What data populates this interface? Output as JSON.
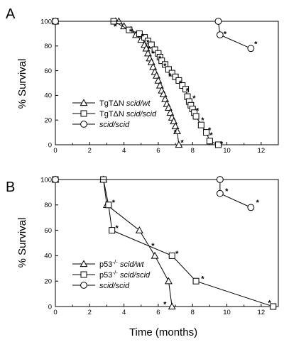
{
  "xlabel": "Time (months)",
  "chart_data": [
    {
      "type": "line",
      "panel": "A",
      "ylabel": "% Survival",
      "xlim": [
        0,
        13
      ],
      "ylim": [
        0,
        100
      ],
      "xticks": [
        0,
        2,
        4,
        6,
        8,
        10,
        12
      ],
      "yticks": [
        0,
        20,
        40,
        60,
        80,
        100
      ],
      "xlabel": "",
      "legend_position": "bottom-left",
      "series": [
        {
          "name": "TgTΔN ",
          "name_italic": "scid/wt",
          "marker": "triangle",
          "x": [
            0,
            3.5,
            3.7,
            4.0,
            4.4,
            4.7,
            5.0,
            5.2,
            5.3,
            5.4,
            5.5,
            5.6,
            5.7,
            5.8,
            5.9,
            6.0,
            6.1,
            6.2,
            6.3,
            6.4,
            6.5,
            6.6,
            6.7,
            6.8,
            6.9,
            7.0,
            7.1,
            7.2
          ],
          "y": [
            100,
            100,
            100,
            96,
            93,
            89,
            85,
            81,
            78,
            74,
            70,
            67,
            63,
            59,
            56,
            52,
            48,
            44,
            41,
            37,
            33,
            30,
            26,
            22,
            19,
            15,
            11,
            0
          ]
        },
        {
          "name": "TgTΔN ",
          "name_italic": "scid/scid",
          "marker": "square",
          "x": [
            0,
            3.4,
            4.3,
            4.9,
            5.2,
            5.4,
            5.6,
            5.8,
            6.0,
            6.1,
            6.2,
            6.4,
            6.6,
            6.8,
            7.0,
            7.2,
            7.4,
            7.6,
            7.7,
            7.8,
            7.9,
            8.0,
            8.1,
            8.2,
            8.5,
            8.8,
            9.0,
            9.5
          ],
          "y": [
            100,
            100,
            93,
            90,
            87,
            84,
            81,
            77,
            74,
            71,
            68,
            65,
            61,
            58,
            55,
            52,
            48,
            45,
            39,
            35,
            32,
            29,
            26,
            23,
            16,
            10,
            3,
            0
          ]
        },
        {
          "name": "",
          "name_italic": "scid/scid",
          "marker": "circle",
          "x": [
            0,
            9.5,
            9.6,
            11.4
          ],
          "y": [
            100,
            100,
            89,
            78
          ]
        }
      ],
      "stars": [
        [
          3.4,
          96
        ],
        [
          4.3,
          92
        ],
        [
          5.0,
          88
        ],
        [
          5.3,
          83
        ],
        [
          5.4,
          78
        ],
        [
          5.6,
          74
        ],
        [
          6.0,
          70
        ],
        [
          6.3,
          64
        ],
        [
          6.6,
          56
        ],
        [
          7.2,
          50
        ],
        [
          7.6,
          44
        ],
        [
          8.0,
          38
        ],
        [
          8.2,
          28
        ],
        [
          8.5,
          20
        ],
        [
          8.9,
          12
        ],
        [
          9.0,
          8
        ],
        [
          9.6,
          1
        ],
        [
          7.3,
          2
        ],
        [
          6.9,
          10
        ],
        [
          9.8,
          90
        ],
        [
          11.6,
          82
        ]
      ]
    },
    {
      "type": "line",
      "panel": "B",
      "ylabel": "% Survival",
      "xlim": [
        0,
        13
      ],
      "ylim": [
        0,
        100
      ],
      "xticks": [
        0,
        2,
        4,
        6,
        8,
        10,
        12
      ],
      "yticks": [
        0,
        20,
        40,
        60,
        80,
        100
      ],
      "xlabel": "Time (months)",
      "legend_position": "bottom-left",
      "series": [
        {
          "name": "p53",
          "name_sup": "-/-",
          "name_italic": "scid/wt",
          "marker": "triangle",
          "x": [
            0,
            2.8,
            3.0,
            4.9,
            5.8,
            6.6,
            6.8
          ],
          "y": [
            100,
            100,
            80,
            60,
            40,
            20,
            0
          ]
        },
        {
          "name": "p53",
          "name_sup": "-/-",
          "name_italic": "scid/scid",
          "marker": "square",
          "x": [
            0,
            2.8,
            3.1,
            3.3,
            6.8,
            8.2,
            12.7
          ],
          "y": [
            100,
            100,
            80,
            60,
            40,
            20,
            0
          ]
        },
        {
          "name": "",
          "name_sup": "",
          "name_italic": "scid/scid",
          "marker": "circle",
          "x": [
            0,
            9.6,
            9.6,
            11.4
          ],
          "y": [
            100,
            100,
            89,
            78
          ]
        }
      ],
      "stars": [
        [
          3.3,
          82
        ],
        [
          3.5,
          62
        ],
        [
          5.6,
          48
        ],
        [
          7.0,
          42
        ],
        [
          8.5,
          22
        ],
        [
          12.4,
          3
        ],
        [
          6.3,
          2
        ],
        [
          9.9,
          91
        ],
        [
          11.7,
          82
        ]
      ]
    }
  ],
  "colors": {
    "ink": "#000000",
    "background": "#ffffff"
  }
}
